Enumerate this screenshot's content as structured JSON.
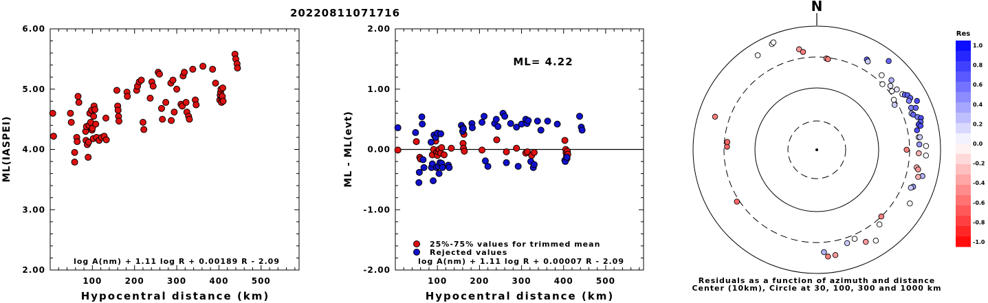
{
  "title": "20220811071716",
  "panels": {
    "left": {
      "ylabel": "ML(IASPEI)",
      "xlabel": "Hypocentral distance (km)",
      "formula": "log A(nm) + 1.11 log R + 0.00189 R - 2.09",
      "yticks": [
        "2.00",
        "3.00",
        "4.00",
        "5.00",
        "6.00"
      ],
      "xticks": [
        "100",
        "200",
        "300",
        "400",
        "500"
      ]
    },
    "middle": {
      "ylabel": "ML - ML(evt)",
      "xlabel": "Hypocentral distance (km)",
      "formula": "log A(nm) + 1.11 log R + 0.00007 R - 2.09",
      "ml_label": "ML= 4.22",
      "legend_trimmed": "25%-75% values for trimmed mean",
      "legend_rejected": "Rejected values",
      "yticks": [
        "-2.00",
        "-1.00",
        "0.00",
        "1.00",
        "2.00"
      ],
      "xticks": [
        "100",
        "200",
        "300",
        "400",
        "500"
      ]
    },
    "right": {
      "north_label": "N",
      "caption_line1": "Residuals as a function of azimuth and distance",
      "caption_line2": "Center (10km), Circle at 30, 100, 300 and 1000 km",
      "colorbar_title": "Res",
      "colorbar_ticks": [
        "1.0",
        "0.8",
        "0.6",
        "0.4",
        "0.2",
        "0.0",
        "-0.2",
        "-0.4",
        "-0.6",
        "-0.8",
        "-1.0"
      ]
    }
  },
  "colors": {
    "trimmed": "#dd1111",
    "rejected": "#1111cc",
    "pos": "#0000ff",
    "neg": "#ff0000"
  },
  "chart_data": [
    {
      "type": "scatter",
      "title": "20220811071716",
      "xlabel": "Hypocentral distance (km)",
      "ylabel": "ML(IASPEI)",
      "xlim": [
        0,
        590
      ],
      "ylim": [
        2,
        6
      ],
      "points": [
        [
          6,
          4.6
        ],
        [
          8,
          4.22
        ],
        [
          48,
          4.6
        ],
        [
          50,
          4.45
        ],
        [
          58,
          3.95
        ],
        [
          58,
          3.79
        ],
        [
          63,
          4.2
        ],
        [
          64,
          4.13
        ],
        [
          66,
          4.88
        ],
        [
          68,
          4.78
        ],
        [
          84,
          4.3
        ],
        [
          85,
          4.15
        ],
        [
          86,
          4.38
        ],
        [
          88,
          4.08
        ],
        [
          90,
          3.87
        ],
        [
          91,
          4.12
        ],
        [
          92,
          4.4
        ],
        [
          94,
          4.6
        ],
        [
          96,
          4.45
        ],
        [
          98,
          4.65
        ],
        [
          99,
          4.32
        ],
        [
          100,
          4.35
        ],
        [
          102,
          4.18
        ],
        [
          103,
          4.55
        ],
        [
          104,
          4.72
        ],
        [
          106,
          4.66
        ],
        [
          108,
          4.42
        ],
        [
          110,
          4.2
        ],
        [
          116,
          4.15
        ],
        [
          122,
          4.2
        ],
        [
          128,
          4.22
        ],
        [
          133,
          4.16
        ],
        [
          132,
          4.52
        ],
        [
          158,
          4.98
        ],
        [
          160,
          4.72
        ],
        [
          161,
          4.65
        ],
        [
          162,
          4.55
        ],
        [
          163,
          4.47
        ],
        [
          182,
          4.95
        ],
        [
          183,
          4.88
        ],
        [
          205,
          4.98
        ],
        [
          207,
          5.05
        ],
        [
          211,
          5.12
        ],
        [
          216,
          5.15
        ],
        [
          220,
          4.45
        ],
        [
          222,
          4.33
        ],
        [
          237,
          4.85
        ],
        [
          241,
          5.12
        ],
        [
          244,
          5.05
        ],
        [
          256,
          5.28
        ],
        [
          259,
          5.25
        ],
        [
          264,
          4.68
        ],
        [
          266,
          4.5
        ],
        [
          274,
          4.78
        ],
        [
          286,
          5.1
        ],
        [
          287,
          4.48
        ],
        [
          291,
          5.15
        ],
        [
          294,
          4.62
        ],
        [
          300,
          5.0
        ],
        [
          310,
          4.75
        ],
        [
          313,
          4.72
        ],
        [
          315,
          5.22
        ],
        [
          318,
          5.28
        ],
        [
          322,
          4.78
        ],
        [
          324,
          4.62
        ],
        [
          328,
          4.55
        ],
        [
          330,
          4.5
        ],
        [
          338,
          5.33
        ],
        [
          344,
          4.82
        ],
        [
          346,
          4.74
        ],
        [
          362,
          5.38
        ],
        [
          385,
          5.33
        ],
        [
          392,
          5.1
        ],
        [
          402,
          4.82
        ],
        [
          403,
          4.9
        ],
        [
          404,
          4.95
        ],
        [
          405,
          5.0
        ],
        [
          406,
          4.78
        ],
        [
          407,
          4.85
        ],
        [
          408,
          4.88
        ],
        [
          409,
          5.02
        ],
        [
          410,
          4.8
        ],
        [
          438,
          5.58
        ],
        [
          440,
          5.5
        ],
        [
          443,
          5.42
        ],
        [
          444,
          5.35
        ]
      ]
    },
    {
      "type": "scatter",
      "xlabel": "Hypocentral distance (km)",
      "ylabel": "ML - ML(evt)",
      "xlim": [
        0,
        590
      ],
      "ylim": [
        -2,
        2
      ],
      "ml": 4.22,
      "series": [
        {
          "name": "25%-75% values for trimmed mean",
          "points": [
            [
              6,
              -0.01
            ],
            [
              50,
              0.13
            ],
            [
              58,
              -0.13
            ],
            [
              60,
              -0.16
            ],
            [
              88,
              -0.09
            ],
            [
              91,
              0.0
            ],
            [
              94,
              0.22
            ],
            [
              96,
              0.14
            ],
            [
              98,
              -0.05
            ],
            [
              100,
              -0.1
            ],
            [
              102,
              -0.04
            ],
            [
              104,
              0.0
            ],
            [
              108,
              -0.06
            ],
            [
              110,
              0.03
            ],
            [
              116,
              -0.09
            ],
            [
              133,
              0.02
            ],
            [
              161,
              0.1
            ],
            [
              162,
              0.02
            ],
            [
              163,
              0.25
            ],
            [
              164,
              -0.03
            ],
            [
              206,
              -0.01
            ],
            [
              241,
              0.16
            ],
            [
              264,
              -0.04
            ],
            [
              288,
              0.02
            ],
            [
              310,
              -0.06
            ],
            [
              314,
              -0.04
            ],
            [
              324,
              -0.1
            ],
            [
              330,
              -0.05
            ],
            [
              403,
              0.15
            ],
            [
              405,
              0.0
            ],
            [
              406,
              -0.06
            ],
            [
              407,
              -0.11
            ],
            [
              408,
              -0.15
            ],
            [
              409,
              -0.03
            ],
            [
              410,
              -0.08
            ]
          ]
        },
        {
          "name": "Rejected values",
          "points": [
            [
              6,
              0.36
            ],
            [
              48,
              0.28
            ],
            [
              56,
              -0.55
            ],
            [
              57,
              -0.38
            ],
            [
              63,
              0.54
            ],
            [
              64,
              0.42
            ],
            [
              66,
              -0.17
            ],
            [
              68,
              -0.3
            ],
            [
              85,
              0.12
            ],
            [
              86,
              -0.3
            ],
            [
              88,
              -0.24
            ],
            [
              90,
              -0.52
            ],
            [
              92,
              0.24
            ],
            [
              96,
              0.2
            ],
            [
              98,
              -0.3
            ],
            [
              100,
              0.27
            ],
            [
              102,
              -0.28
            ],
            [
              104,
              -0.4
            ],
            [
              106,
              -0.22
            ],
            [
              108,
              0.26
            ],
            [
              110,
              -0.23
            ],
            [
              112,
              -0.3
            ],
            [
              126,
              -0.26
            ],
            [
              128,
              -0.3
            ],
            [
              157,
              0.4
            ],
            [
              160,
              0.3
            ],
            [
              161,
              0.36
            ],
            [
              162,
              0.34
            ],
            [
              182,
              0.43
            ],
            [
              183,
              0.36
            ],
            [
              206,
              0.45
            ],
            [
              211,
              0.55
            ],
            [
              214,
              -0.19
            ],
            [
              220,
              -0.28
            ],
            [
              236,
              0.43
            ],
            [
              240,
              0.5
            ],
            [
              244,
              0.38
            ],
            [
              256,
              0.6
            ],
            [
              260,
              0.55
            ],
            [
              264,
              -0.22
            ],
            [
              274,
              0.43
            ],
            [
              288,
              0.37
            ],
            [
              292,
              -0.28
            ],
            [
              300,
              0.42
            ],
            [
              310,
              0.5
            ],
            [
              313,
              0.43
            ],
            [
              316,
              0.48
            ],
            [
              322,
              -0.2
            ],
            [
              328,
              -0.3
            ],
            [
              330,
              -0.25
            ],
            [
              338,
              0.47
            ],
            [
              346,
              0.32
            ],
            [
              362,
              0.47
            ],
            [
              385,
              0.42
            ],
            [
              403,
              -0.18
            ],
            [
              404,
              -0.2
            ],
            [
              408,
              -0.13
            ],
            [
              438,
              0.55
            ],
            [
              442,
              0.37
            ],
            [
              444,
              0.32
            ]
          ]
        }
      ]
    },
    {
      "type": "scatter",
      "title": "Residuals as a function of azimuth and distance",
      "subtitle": "Center (10km), Circle at 30, 100, 300 and 1000 km",
      "coordinate_system": "polar (azimuth, log distance)",
      "rings_km": [
        30,
        100,
        300,
        1000
      ],
      "center_km": 10,
      "color_scale": {
        "label": "Res",
        "min": -1.0,
        "max": 1.0
      },
      "points": [
        [
          337,
          710,
          0.0
        ],
        [
          338,
          735,
          0.0
        ],
        [
          328,
          620,
          0.0
        ],
        [
          350,
          430,
          -0.4
        ],
        [
          352,
          380,
          -0.5
        ],
        [
          6,
          290,
          -0.4
        ],
        [
          7,
          285,
          -0.5
        ],
        [
          29,
          450,
          0.6
        ],
        [
          30,
          430,
          0.2
        ],
        [
          39,
          690,
          0.6
        ],
        [
          41,
          380,
          0.0
        ],
        [
          45,
          300,
          0.0
        ],
        [
          47,
          430,
          0.3
        ],
        [
          49,
          360,
          0.1
        ],
        [
          52,
          330,
          0.0
        ],
        [
          53,
          400,
          0.1
        ],
        [
          57,
          430,
          0.0
        ],
        [
          57,
          290,
          0.0
        ],
        [
          60,
          270,
          0.2
        ],
        [
          58,
          460,
          0.6
        ],
        [
          59,
          500,
          0.6
        ],
        [
          61,
          520,
          0.6
        ],
        [
          62,
          470,
          0.5
        ],
        [
          64,
          620,
          0.7
        ],
        [
          66,
          450,
          0.5
        ],
        [
          67,
          530,
          0.6
        ],
        [
          69,
          420,
          0.3
        ],
        [
          70,
          440,
          0.6
        ],
        [
          72,
          500,
          0.5
        ],
        [
          73,
          560,
          0.7
        ],
        [
          75,
          530,
          0.6
        ],
        [
          76,
          480,
          0.7
        ],
        [
          77,
          510,
          0.7
        ],
        [
          79,
          430,
          0.7
        ],
        [
          83,
          440,
          0.0
        ],
        [
          83,
          460,
          0.2
        ],
        [
          87,
          440,
          0.4
        ],
        [
          88,
          570,
          0.0
        ],
        [
          90,
          270,
          -0.5
        ],
        [
          92,
          430,
          -0.3
        ],
        [
          93,
          570,
          0.0
        ],
        [
          100,
          420,
          -0.3
        ],
        [
          101,
          450,
          -0.4
        ],
        [
          104,
          560,
          0.3
        ],
        [
          105,
          480,
          -0.3
        ],
        [
          111,
          450,
          0.4
        ],
        [
          112,
          420,
          0.2
        ],
        [
          120,
          530,
          0.0
        ],
        [
          136,
          300,
          -0.5
        ],
        [
          140,
          360,
          0.0
        ],
        [
          147,
          550,
          0.0
        ],
        [
          152,
          470,
          -0.4
        ],
        [
          157,
          350,
          0.0
        ],
        [
          162,
          370,
          0.2
        ],
        [
          170,
          520,
          -0.4
        ],
        [
          174,
          530,
          -0.5
        ],
        [
          176,
          440,
          0.3
        ],
        [
          237,
          330,
          -0.6
        ],
        [
          272,
          270,
          -0.6
        ],
        [
          275,
          270,
          -0.6
        ],
        [
          288,
          520,
          -0.5
        ]
      ]
    }
  ]
}
